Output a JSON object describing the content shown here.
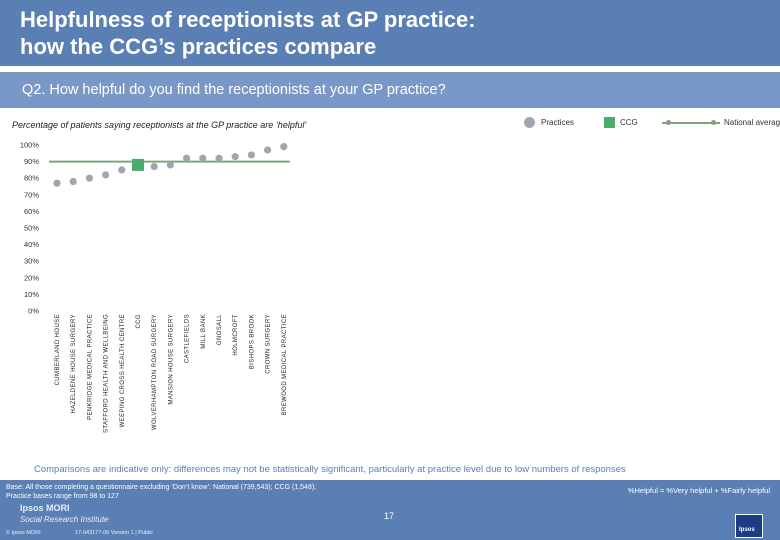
{
  "header": {
    "title_line1": "Helpfulness of receptionists at GP practice:",
    "title_line2": "how the CCG’s practices compare",
    "question": "Q2. How helpful do you find the receptionists at your GP practice?"
  },
  "subtitle": "Percentage of patients saying receptionists at the GP practice are ‘helpful’",
  "legend": {
    "practices": "Practices",
    "ccg": "CCG",
    "national": "National average"
  },
  "colors": {
    "practice_marker": "#9ea6b0",
    "ccg_marker": "#4dab6d",
    "national_line": "#7fa17d",
    "brand_blue": "#5a7fb5"
  },
  "chart_data": {
    "type": "scatter",
    "title": "Percentage of patients saying receptionists at the GP practice are ‘helpful’",
    "ylim": [
      0,
      100
    ],
    "y_ticks": [
      "0%",
      "10%",
      "20%",
      "30%",
      "40%",
      "50%",
      "60%",
      "70%",
      "80%",
      "90%",
      "100%"
    ],
    "national_average": 90,
    "categories": [
      "CUMBERLAND HOUSE",
      "HAZELDENE HOUSE SURGERY",
      "PENKRIDGE MEDICAL PRACTICE",
      "STAFFORD HEALTH AND WELLBEING",
      "WEEPING CROSS HEALTH CENTRE",
      "CCG",
      "WOLVERHAMPTON ROAD SURGERY",
      "MANSION HOUSE SURGERY",
      "CASTLEFIELDS",
      "MILL BANK",
      "GNOSALL",
      "HOLMCROFT",
      "BISHOPS BROOK",
      "CROWN SURGERY",
      "BREWOOD MEDICAL PRACTICE"
    ],
    "values": [
      77,
      78,
      80,
      82,
      85,
      88,
      87,
      88,
      92,
      92,
      92,
      93,
      94,
      97,
      99
    ],
    "kinds": [
      "practice",
      "practice",
      "practice",
      "practice",
      "practice",
      "ccg",
      "practice",
      "practice",
      "practice",
      "practice",
      "practice",
      "practice",
      "practice",
      "practice",
      "practice"
    ]
  },
  "footnote": "Comparisons are indicative only: differences may not be statistically significant, particularly at practice level due to low numbers of responses",
  "footer": {
    "base_line1": "Base: All those completing a questionnaire excluding ‘Don’t know’: National (739,543); CCG (1,548);",
    "base_line2": "Practice bases range from 98 to 127",
    "helpful_definition": "%Helpful = %Very helpful + %Fairly helpful",
    "logo_main": "Ipsos MORI",
    "logo_sub": "Social Research Institute",
    "page_number": "17",
    "copyright": "© Ipsos MORI",
    "reference": "17-043177-06 Version 1 | Public",
    "ipsos_badge": "Ipsos"
  }
}
